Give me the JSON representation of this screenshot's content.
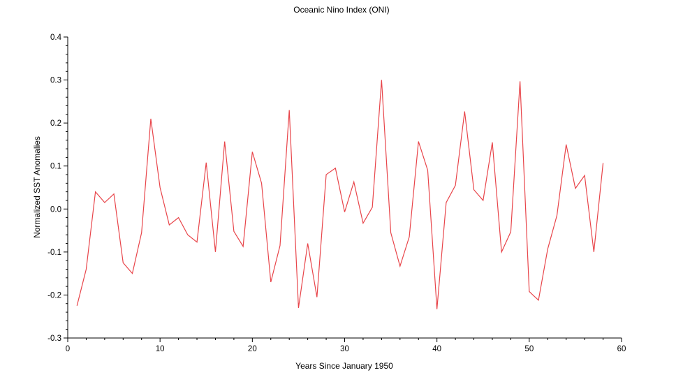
{
  "chart_data": {
    "type": "line",
    "title": "Oceanic Nino Index (ONI)",
    "xlabel": "Years Since January 1950",
    "ylabel": "Normalized SST Anomalies",
    "xlim": [
      0,
      60
    ],
    "ylim": [
      -0.3,
      0.4
    ],
    "xticks": [
      0,
      10,
      20,
      30,
      40,
      50,
      60
    ],
    "yticks": [
      -0.3,
      -0.2,
      -0.1,
      0.0,
      0.1,
      0.2,
      0.3,
      0.4
    ],
    "xtick_labels": [
      "0",
      "10",
      "20",
      "30",
      "40",
      "50",
      "60"
    ],
    "ytick_labels": [
      "-0.3",
      "-0.2",
      "-0.1",
      "0.0",
      "0.1",
      "0.2",
      "0.3",
      "0.4"
    ],
    "grid": false,
    "series": [
      {
        "color": "#e8454a",
        "x": [
          1,
          2,
          3,
          4,
          5,
          6,
          7,
          8,
          9,
          10,
          11,
          12,
          13,
          14,
          15,
          16,
          17,
          18,
          19,
          20,
          21,
          22,
          23,
          24,
          25,
          26,
          27,
          28,
          29,
          30,
          31,
          32,
          33,
          34,
          35,
          36,
          37,
          38,
          39,
          40,
          41,
          42,
          43,
          44,
          45,
          46,
          47,
          48,
          49,
          50,
          51,
          52,
          53,
          54,
          55,
          56,
          57,
          58
        ],
        "values": [
          -0.225,
          -0.14,
          0.04,
          0.015,
          0.035,
          -0.125,
          -0.15,
          -0.055,
          0.21,
          0.05,
          -0.037,
          -0.02,
          -0.06,
          -0.077,
          0.108,
          -0.1,
          0.157,
          -0.052,
          -0.087,
          0.133,
          0.06,
          -0.17,
          -0.085,
          0.23,
          -0.23,
          -0.08,
          -0.205,
          0.08,
          0.095,
          -0.007,
          0.063,
          -0.033,
          0.004,
          0.3,
          -0.055,
          -0.133,
          -0.065,
          0.157,
          0.09,
          -0.233,
          0.015,
          0.055,
          0.227,
          0.045,
          0.02,
          0.155,
          -0.1,
          -0.053,
          0.297,
          -0.192,
          -0.212,
          -0.093,
          -0.015,
          0.15,
          0.048,
          0.078,
          -0.1,
          0.107
        ]
      }
    ]
  }
}
